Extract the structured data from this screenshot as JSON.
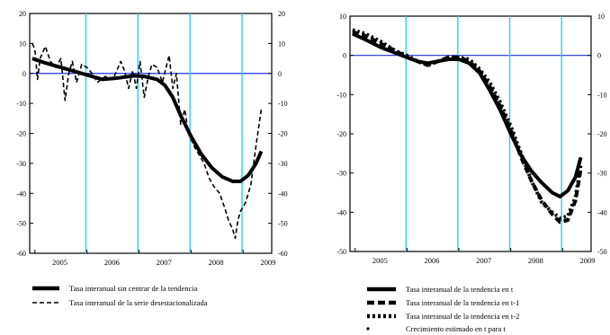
{
  "charts": [
    {
      "chart_data": {
        "type": "line",
        "x_tick_labels": [
          "2005",
          "2006",
          "2007",
          "2008",
          "2009"
        ],
        "ylim": [
          -60,
          20
        ],
        "y_ticks": [
          20,
          10,
          0,
          -10,
          -20,
          -30,
          -40,
          -50,
          -60
        ],
        "grid": false,
        "vertical_markers": [
          2005.98,
          2006.98,
          2007.98,
          2008.98
        ],
        "zero_line": 0,
        "series": [
          {
            "name": "Tasa interanual sin centrar de la tendencia",
            "style": "solid-thick",
            "x": [
              2004.95,
              2005.2,
              2005.5,
              2005.8,
              2006.0,
              2006.3,
              2006.6,
              2006.9,
              2007.1,
              2007.35,
              2007.5,
              2007.65,
              2007.8,
              2008.0,
              2008.2,
              2008.4,
              2008.6,
              2008.8,
              2008.95,
              2009.1,
              2009.25,
              2009.35
            ],
            "y": [
              5,
              3.5,
              2,
              0.5,
              -0.5,
              -2,
              -1.5,
              -0.8,
              -1,
              -2,
              -4,
              -8,
              -14,
              -21,
              -27,
              -31.5,
              -34.5,
              -36,
              -36,
              -34,
              -30,
              -26
            ]
          },
          {
            "name": "Tasa interanual de la serie desestacionalizada",
            "style": "dashed",
            "x": [
              2004.95,
              2005.0,
              2005.05,
              2005.1,
              2005.2,
              2005.3,
              2005.4,
              2005.5,
              2005.58,
              2005.65,
              2005.72,
              2005.8,
              2005.9,
              2006.0,
              2006.1,
              2006.2,
              2006.35,
              2006.5,
              2006.65,
              2006.72,
              2006.8,
              2006.88,
              2006.95,
              2007.02,
              2007.1,
              2007.18,
              2007.25,
              2007.35,
              2007.45,
              2007.52,
              2007.58,
              2007.65,
              2007.72,
              2007.8,
              2007.88,
              2007.95,
              2008.05,
              2008.15,
              2008.25,
              2008.35,
              2008.45,
              2008.55,
              2008.65,
              2008.72,
              2008.8,
              2008.85,
              2008.9,
              2008.95,
              2009.05,
              2009.15,
              2009.25,
              2009.35
            ],
            "y": [
              10,
              8,
              -2,
              5,
              9,
              4,
              2,
              5,
              -9,
              0,
              4,
              -3,
              3,
              2,
              0,
              -3,
              -1,
              -2,
              4,
              1,
              -5,
              1,
              -5,
              4,
              -8,
              -1,
              3,
              2,
              -3,
              2,
              6,
              -5,
              0,
              -17,
              -12,
              -20,
              -24,
              -27,
              -30,
              -35,
              -38,
              -40,
              -45,
              -49,
              -52,
              -55,
              -49,
              -46,
              -43,
              -37,
              -24,
              -12
            ]
          }
        ]
      },
      "ytick_left": [
        "20",
        "10",
        "0",
        "-10",
        "-20",
        "-30",
        "-40",
        "-50",
        "-60"
      ],
      "ytick_right": [
        "20",
        "10",
        "0",
        "-10",
        "-20",
        "-30",
        "-40",
        "-50",
        "-60"
      ]
    },
    {
      "chart_data": {
        "type": "line",
        "x_tick_labels": [
          "2005",
          "2006",
          "2007",
          "2008",
          "2009"
        ],
        "ylim": [
          -50,
          10
        ],
        "y_ticks": [
          10,
          0,
          -10,
          -20,
          -30,
          -40,
          -50
        ],
        "grid": false,
        "vertical_markers": [
          2005.98,
          2006.98,
          2007.98,
          2008.98
        ],
        "zero_line": 0,
        "series": [
          {
            "name": "Tasa interanual de la tendencia en t",
            "style": "solid-thick",
            "x": [
              2004.95,
              2005.2,
              2005.5,
              2005.8,
              2006.0,
              2006.2,
              2006.4,
              2006.6,
              2006.8,
              2007.0,
              2007.2,
              2007.4,
              2007.6,
              2007.8,
              2008.0,
              2008.2,
              2008.4,
              2008.6,
              2008.8,
              2008.95,
              2009.1,
              2009.25,
              2009.35
            ],
            "y": [
              5.5,
              4,
              2,
              0.5,
              -0.5,
              -1.5,
              -2,
              -1.5,
              -1,
              -1,
              -2,
              -4.5,
              -9,
              -14,
              -20,
              -25.5,
              -29.5,
              -32.5,
              -35,
              -36,
              -34.5,
              -31,
              -26
            ]
          },
          {
            "name": "Tasa interanual de la tendencia en t-1",
            "style": "dashed-thick",
            "x": [
              2004.95,
              2005.2,
              2005.5,
              2005.8,
              2006.0,
              2006.2,
              2006.4,
              2006.6,
              2006.8,
              2007.0,
              2007.2,
              2007.4,
              2007.6,
              2007.8,
              2008.0,
              2008.2,
              2008.4,
              2008.6,
              2008.8,
              2008.95,
              2009.1,
              2009.25,
              2009.35
            ],
            "y": [
              6,
              5,
              3,
              1,
              -0.5,
              -1.5,
              -2.5,
              -1.5,
              -0.5,
              -0.5,
              -1.5,
              -4,
              -8,
              -13,
              -19,
              -26,
              -32,
              -37,
              -40.5,
              -42.5,
              -42,
              -37,
              -29
            ]
          },
          {
            "name": "Tasa interanual de la tendencia en t-2",
            "style": "dotted-thick",
            "x": [
              2004.95,
              2005.2,
              2005.5,
              2005.8,
              2006.0,
              2006.2,
              2006.4,
              2006.6,
              2006.8,
              2007.0,
              2007.2,
              2007.4,
              2007.6,
              2007.8,
              2008.0,
              2008.2,
              2008.4,
              2008.6,
              2008.8,
              2008.95,
              2009.1,
              2009.25,
              2009.35
            ],
            "y": [
              6.5,
              5.5,
              3.5,
              1,
              0,
              -1.5,
              -2.5,
              -1.5,
              -0.5,
              -0.5,
              -1,
              -3.5,
              -7,
              -12,
              -18,
              -25,
              -32,
              -37.5,
              -40,
              -41.5,
              -41,
              -36,
              -28
            ]
          }
        ]
      },
      "ytick_left": [
        "10",
        "0",
        "-10",
        "-20",
        "-30",
        "-40",
        "-50"
      ],
      "ytick_right": [
        "10",
        "0",
        "-10",
        "-20",
        "-30",
        "-40",
        "-50"
      ]
    }
  ],
  "legend_left": [
    "Tasa interanual sin centrar de la tendencia",
    "Tasa interanual de la serie desestacionalizada"
  ],
  "legend_right": [
    "Tasa interanual de la tendencia en t",
    "Tasa interanual de la tendencia en t-1",
    "Tasa interanual de la tendencia en t-2",
    "Crecimiento estimado en t para t"
  ],
  "colors": {
    "series": "#000000",
    "vertical_markers": "#27d3e6",
    "zero_line": "#1f2fe0",
    "frame": "#000000"
  }
}
